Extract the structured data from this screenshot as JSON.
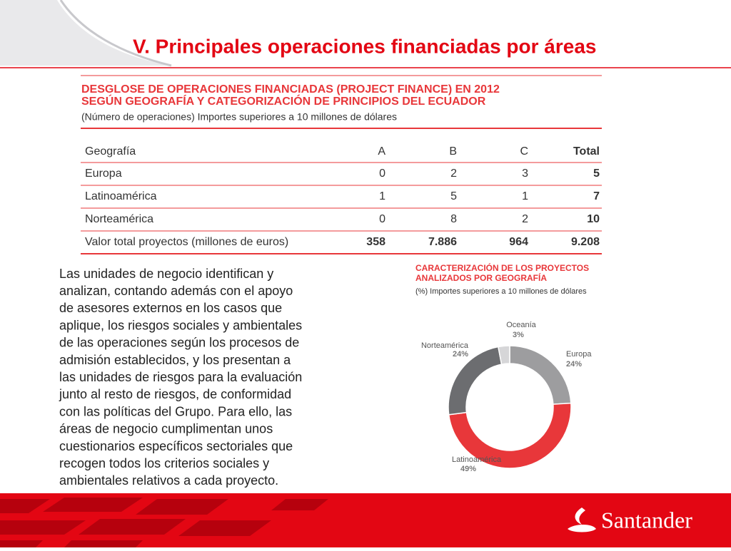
{
  "header": {
    "title": "V. Principales operaciones financiadas por áreas"
  },
  "table": {
    "title_lines": [
      "DESGLOSE DE OPERACIONES FINANCIADAS (PROJECT FINANCE) EN 2012",
      "SEGÚN GEOGRAFÍA Y CATEGORIZACIÓN DE PRINCIPIOS DEL ECUADOR"
    ],
    "subtitle": "(Número de operaciones) Importes superiores a 10 millones de dólares",
    "header": [
      "Geografía",
      "A",
      "B",
      "C",
      "Total"
    ],
    "rows": [
      [
        "Europa",
        "0",
        "2",
        "3",
        "5"
      ],
      [
        "Latinoamérica",
        "1",
        "5",
        "1",
        "7"
      ],
      [
        "Norteamérica",
        "0",
        "8",
        "2",
        "10"
      ],
      [
        "Valor total proyectos (millones de euros)",
        "358",
        "7.886",
        "964",
        "9.208"
      ]
    ]
  },
  "paragraph": {
    "lines": [
      "Las unidades de negocio identifican y",
      "analizan, contando además con el apoyo",
      "de asesores externos en los casos que",
      "aplique, los riesgos sociales y ambientales",
      "de las operaciones según los procesos de",
      "admisión establecidos, y los presentan a",
      "las unidades de riesgos para la evaluación",
      "junto al resto de riesgos, de conformidad",
      "con las políticas del Grupo. Para ello, las",
      "áreas de negocio cumplimentan unos",
      "cuestionarios específicos sectoriales que",
      "recogen todos los criterios sociales y",
      "ambientales relativos a cada proyecto."
    ]
  },
  "chart_data": {
    "type": "donut",
    "title_lines": [
      "CARACTERIZACIÓN DE LOS PROYECTOS",
      "ANALIZADOS POR GEOGRAFÍA"
    ],
    "subtitle": "(%) Importes superiores a 10 millones de dólares",
    "categories": [
      "Europa",
      "Latinoamérica",
      "Norteamérica",
      "Oceanía"
    ],
    "values": [
      24,
      49,
      24,
      3
    ],
    "value_labels": [
      "24%",
      "49%",
      "24%",
      "3%"
    ],
    "colors": [
      "#9d9d9f",
      "#e8373a",
      "#6c6d70",
      "#d6d6d8"
    ]
  },
  "footer": {
    "logo": "Santander"
  }
}
